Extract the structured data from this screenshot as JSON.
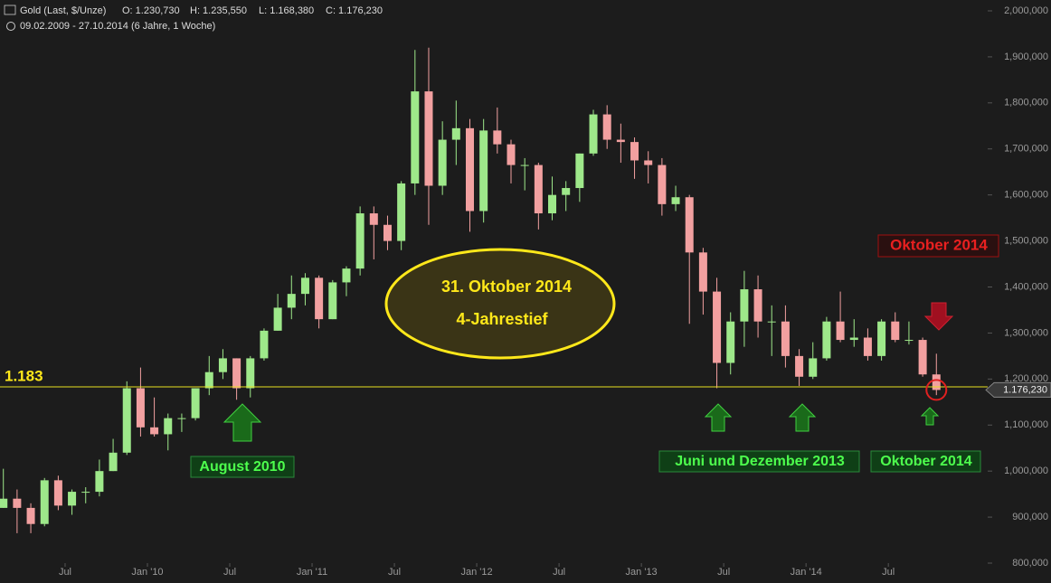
{
  "chart_data": {
    "type": "candlestick",
    "title": "Gold (Last, $/Unze)",
    "header_ohlc": [
      "O: 1.230,730",
      "H: 1.235,550",
      "L: 1.168,380",
      "C: 1.176,230"
    ],
    "subtitle": "09.02.2009 - 27.10.2014 (6 Jahre, 1 Woche)",
    "x": [
      "2009-02",
      "2009-03",
      "2009-04",
      "2009-05",
      "2009-06",
      "2009-07",
      "2009-08",
      "2009-09",
      "2009-10",
      "2009-11",
      "2009-12",
      "2010-01",
      "2010-02",
      "2010-03",
      "2010-04",
      "2010-05",
      "2010-06",
      "2010-07",
      "2010-08",
      "2010-09",
      "2010-10",
      "2010-11",
      "2010-12",
      "2011-01",
      "2011-02",
      "2011-03",
      "2011-04",
      "2011-05",
      "2011-06",
      "2011-07",
      "2011-08",
      "2011-09",
      "2011-10",
      "2011-11",
      "2011-12",
      "2012-01",
      "2012-02",
      "2012-03",
      "2012-04",
      "2012-05",
      "2012-06",
      "2012-07",
      "2012-08",
      "2012-09",
      "2012-10",
      "2012-11",
      "2012-12",
      "2013-01",
      "2013-02",
      "2013-03",
      "2013-04",
      "2013-05",
      "2013-06",
      "2013-07",
      "2013-08",
      "2013-09",
      "2013-10",
      "2013-11",
      "2013-12",
      "2014-01",
      "2014-02",
      "2014-03",
      "2014-04",
      "2014-05",
      "2014-06",
      "2014-07",
      "2014-08",
      "2014-09",
      "2014-10"
    ],
    "open": [
      920000,
      940000,
      920000,
      885000,
      980000,
      925000,
      955000,
      955000,
      1000000,
      1040000,
      1180000,
      1095000,
      1080000,
      1115000,
      1115000,
      1180000,
      1215000,
      1245000,
      1180000,
      1245000,
      1305000,
      1355000,
      1385000,
      1420000,
      1330000,
      1410000,
      1440000,
      1560000,
      1535000,
      1500000,
      1625000,
      1825000,
      1620000,
      1720000,
      1745000,
      1565000,
      1740000,
      1710000,
      1665000,
      1665000,
      1560000,
      1600000,
      1615000,
      1690000,
      1775000,
      1720000,
      1715000,
      1675000,
      1665000,
      1580000,
      1595000,
      1475000,
      1390000,
      1235000,
      1325000,
      1395000,
      1325000,
      1325000,
      1250000,
      1205000,
      1245000,
      1325000,
      1285000,
      1290000,
      1250000,
      1325000,
      1285000,
      1285000,
      1210000
    ],
    "high": [
      1005000,
      960000,
      930000,
      985000,
      990000,
      960000,
      965000,
      1025000,
      1070000,
      1195000,
      1225000,
      1160000,
      1125000,
      1125000,
      1180000,
      1250000,
      1265000,
      1245000,
      1250000,
      1310000,
      1385000,
      1425000,
      1430000,
      1425000,
      1415000,
      1445000,
      1575000,
      1575000,
      1555000,
      1630000,
      1915000,
      1920000,
      1760000,
      1805000,
      1765000,
      1765000,
      1790000,
      1720000,
      1680000,
      1670000,
      1640000,
      1630000,
      1690000,
      1785000,
      1795000,
      1755000,
      1725000,
      1695000,
      1680000,
      1620000,
      1600000,
      1485000,
      1420000,
      1345000,
      1435000,
      1425000,
      1360000,
      1360000,
      1265000,
      1280000,
      1335000,
      1390000,
      1330000,
      1310000,
      1330000,
      1345000,
      1325000,
      1290000,
      1255000
    ],
    "low": [
      920000,
      865000,
      865000,
      880000,
      915000,
      905000,
      930000,
      945000,
      1000000,
      1035000,
      1075000,
      1075000,
      1045000,
      1085000,
      1110000,
      1165000,
      1200000,
      1155000,
      1160000,
      1240000,
      1305000,
      1330000,
      1360000,
      1310000,
      1330000,
      1380000,
      1425000,
      1460000,
      1480000,
      1480000,
      1600000,
      1535000,
      1600000,
      1665000,
      1520000,
      1540000,
      1690000,
      1625000,
      1610000,
      1525000,
      1545000,
      1565000,
      1585000,
      1685000,
      1700000,
      1670000,
      1635000,
      1625000,
      1555000,
      1565000,
      1320000,
      1340000,
      1180000,
      1210000,
      1270000,
      1290000,
      1250000,
      1225000,
      1185000,
      1200000,
      1240000,
      1280000,
      1270000,
      1240000,
      1240000,
      1280000,
      1275000,
      1205000,
      1165000
    ],
    "close": [
      940000,
      920000,
      885000,
      980000,
      925000,
      955000,
      955000,
      1000000,
      1040000,
      1180000,
      1095000,
      1080000,
      1115000,
      1115000,
      1180000,
      1215000,
      1245000,
      1180000,
      1245000,
      1305000,
      1355000,
      1385000,
      1420000,
      1330000,
      1410000,
      1440000,
      1560000,
      1535000,
      1500000,
      1625000,
      1825000,
      1620000,
      1720000,
      1745000,
      1565000,
      1740000,
      1710000,
      1665000,
      1665000,
      1560000,
      1600000,
      1615000,
      1690000,
      1775000,
      1720000,
      1715000,
      1675000,
      1665000,
      1580000,
      1595000,
      1475000,
      1390000,
      1235000,
      1325000,
      1395000,
      1325000,
      1325000,
      1250000,
      1205000,
      1245000,
      1325000,
      1285000,
      1290000,
      1250000,
      1325000,
      1285000,
      1285000,
      1210000,
      1176230
    ],
    "up_color": "#9ee88a",
    "down_color": "#f2a0a0",
    "ylim": [
      800000,
      2000000
    ],
    "yticks": [
      {
        "value": 800000,
        "label": "800,000"
      },
      {
        "value": 900000,
        "label": "900,000"
      },
      {
        "value": 1000000,
        "label": "1,000,000"
      },
      {
        "value": 1100000,
        "label": "1,100,000"
      },
      {
        "value": 1200000,
        "label": "1,200,000"
      },
      {
        "value": 1300000,
        "label": "1,300,000"
      },
      {
        "value": 1400000,
        "label": "1,400,000"
      },
      {
        "value": 1500000,
        "label": "1,500,000"
      },
      {
        "value": 1600000,
        "label": "1,600,000"
      },
      {
        "value": 1700000,
        "label": "1,700,000"
      },
      {
        "value": 1800000,
        "label": "1,800,000"
      },
      {
        "value": 1900000,
        "label": "1,900,000"
      },
      {
        "value": 2000000,
        "label": "2,000,000"
      }
    ],
    "xticks": [
      {
        "value": "2009-07",
        "label": "Jul"
      },
      {
        "value": "2010-01",
        "label": "Jan '10"
      },
      {
        "value": "2010-07",
        "label": "Jul"
      },
      {
        "value": "2011-01",
        "label": "Jan '11"
      },
      {
        "value": "2011-07",
        "label": "Jul"
      },
      {
        "value": "2012-01",
        "label": "Jan '12"
      },
      {
        "value": "2012-07",
        "label": "Jul"
      },
      {
        "value": "2013-01",
        "label": "Jan '13"
      },
      {
        "value": "2013-07",
        "label": "Jul"
      },
      {
        "value": "2014-01",
        "label": "Jan '14"
      },
      {
        "value": "2014-07",
        "label": "Jul"
      }
    ],
    "level": {
      "value": 1183000,
      "label": "1.183"
    },
    "last_price": {
      "value": 1176230,
      "label": "1.176,230"
    },
    "annotations": {
      "ellipse": [
        "31. Oktober 2014",
        "4-Jahrestief"
      ],
      "august": "August 2010",
      "juni": "Juni und Dezember 2013",
      "oktober_green": "Oktober 2014",
      "oktober_red": "Oktober 2014"
    }
  }
}
